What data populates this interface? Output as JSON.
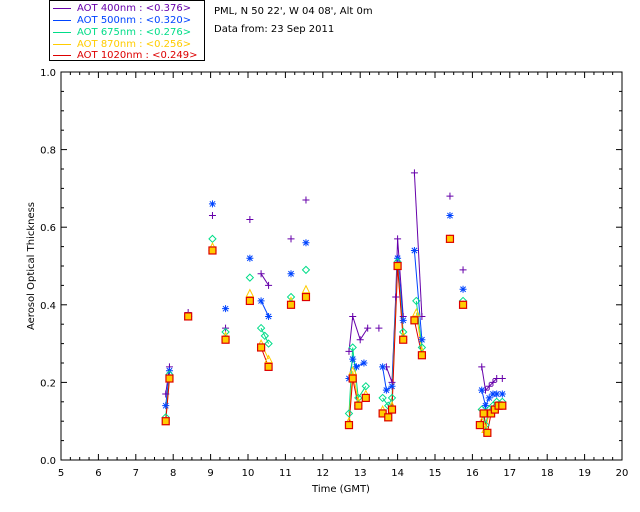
{
  "header": {
    "site": "PML, N 50 22', W 04 08', Alt 0m",
    "date_line": "Data from: 23 Sep 2011"
  },
  "legend": [
    {
      "label": "AOT  400nm : <0.376>",
      "color": "#6600aa"
    },
    {
      "label": "AOT  500nm : <0.320>",
      "color": "#0044ff"
    },
    {
      "label": "AOT  675nm : <0.276>",
      "color": "#00dd88"
    },
    {
      "label": "AOT  870nm : <0.256>",
      "color": "#ffcc00"
    },
    {
      "label": "AOT 1020nm : <0.249>",
      "color": "#dd0000"
    }
  ],
  "chart_data": {
    "type": "line",
    "title": "",
    "xlabel": "Time (GMT)",
    "ylabel": "Aerosol Optical Thickness",
    "xlim": [
      5,
      20
    ],
    "ylim": [
      0.0,
      1.0
    ],
    "xticks": [
      "5",
      "6",
      "7",
      "8",
      "9",
      "10",
      "11",
      "12",
      "13",
      "14",
      "15",
      "16",
      "17",
      "18",
      "19",
      "20"
    ],
    "yticks": [
      "0.0",
      "0.2",
      "0.4",
      "0.6",
      "0.8",
      "1.0"
    ],
    "grid": false,
    "legend_position": "top-left",
    "series": [
      {
        "name": "AOT  400nm : <0.376>",
        "color": "#6600aa",
        "marker": "plus",
        "segments": [
          [
            [
              7.8,
              0.17
            ],
            [
              7.9,
              0.24
            ]
          ],
          [
            [
              8.4,
              0.38
            ]
          ],
          [
            [
              9.05,
              0.63
            ]
          ],
          [
            [
              9.4,
              0.34
            ]
          ],
          [
            [
              10.05,
              0.62
            ]
          ],
          [
            [
              10.35,
              0.48
            ],
            [
              10.55,
              0.45
            ]
          ],
          [
            [
              11.15,
              0.57
            ]
          ],
          [
            [
              11.55,
              0.67
            ]
          ],
          [
            [
              12.7,
              0.28
            ],
            [
              12.8,
              0.37
            ],
            [
              13.0,
              0.31
            ],
            [
              13.2,
              0.34
            ]
          ],
          [
            [
              13.5,
              0.34
            ]
          ],
          [
            [
              13.7,
              0.24
            ],
            [
              13.85,
              0.2
            ],
            [
              13.95,
              0.42
            ],
            [
              14.0,
              0.57
            ],
            [
              14.15,
              0.37
            ]
          ],
          [
            [
              14.45,
              0.74
            ],
            [
              14.65,
              0.37
            ]
          ],
          [
            [
              15.4,
              0.68
            ]
          ],
          [
            [
              15.75,
              0.49
            ]
          ],
          [
            [
              16.25,
              0.24
            ],
            [
              16.35,
              0.18
            ],
            [
              16.45,
              0.19
            ],
            [
              16.55,
              0.2
            ],
            [
              16.65,
              0.21
            ],
            [
              16.8,
              0.21
            ]
          ]
        ]
      },
      {
        "name": "AOT  500nm : <0.320>",
        "color": "#0044ff",
        "marker": "star",
        "segments": [
          [
            [
              7.8,
              0.14
            ],
            [
              7.9,
              0.23
            ]
          ],
          [
            [
              8.4,
              0.37
            ]
          ],
          [
            [
              9.05,
              0.66
            ]
          ],
          [
            [
              9.4,
              0.39
            ]
          ],
          [
            [
              10.05,
              0.52
            ]
          ],
          [
            [
              10.35,
              0.41
            ],
            [
              10.55,
              0.37
            ]
          ],
          [
            [
              11.15,
              0.48
            ]
          ],
          [
            [
              11.55,
              0.56
            ]
          ],
          [
            [
              12.7,
              0.21
            ],
            [
              12.8,
              0.26
            ],
            [
              12.9,
              0.24
            ],
            [
              13.1,
              0.25
            ]
          ],
          [
            [
              13.6,
              0.24
            ],
            [
              13.7,
              0.18
            ],
            [
              13.85,
              0.19
            ],
            [
              14.0,
              0.52
            ],
            [
              14.15,
              0.36
            ]
          ],
          [
            [
              14.45,
              0.54
            ],
            [
              14.65,
              0.31
            ]
          ],
          [
            [
              15.4,
              0.63
            ]
          ],
          [
            [
              15.75,
              0.44
            ]
          ],
          [
            [
              16.25,
              0.18
            ],
            [
              16.35,
              0.14
            ],
            [
              16.45,
              0.16
            ],
            [
              16.55,
              0.17
            ],
            [
              16.65,
              0.17
            ],
            [
              16.8,
              0.17
            ]
          ]
        ]
      },
      {
        "name": "AOT  675nm : <0.276>",
        "color": "#00dd88",
        "marker": "diamond",
        "segments": [
          [
            [
              7.8,
              0.11
            ],
            [
              7.9,
              0.22
            ]
          ],
          [
            [
              8.4,
              0.37
            ]
          ],
          [
            [
              9.05,
              0.57
            ]
          ],
          [
            [
              9.4,
              0.33
            ]
          ],
          [
            [
              10.05,
              0.47
            ]
          ],
          [
            [
              10.35,
              0.34
            ],
            [
              10.45,
              0.32
            ],
            [
              10.55,
              0.3
            ]
          ],
          [
            [
              11.15,
              0.42
            ]
          ],
          [
            [
              11.55,
              0.49
            ]
          ],
          [
            [
              12.7,
              0.12
            ],
            [
              12.8,
              0.29
            ],
            [
              12.95,
              0.16
            ],
            [
              13.15,
              0.19
            ]
          ],
          [
            [
              13.6,
              0.16
            ],
            [
              13.75,
              0.14
            ],
            [
              13.85,
              0.16
            ],
            [
              14.0,
              0.51
            ],
            [
              14.15,
              0.33
            ]
          ],
          [
            [
              14.5,
              0.41
            ],
            [
              14.65,
              0.29
            ]
          ],
          [
            [
              15.4,
              0.57
            ]
          ],
          [
            [
              15.75,
              0.41
            ]
          ],
          [
            [
              16.25,
              0.13
            ],
            [
              16.35,
              0.09
            ],
            [
              16.45,
              0.13
            ],
            [
              16.55,
              0.14
            ],
            [
              16.65,
              0.15
            ],
            [
              16.8,
              0.15
            ]
          ]
        ]
      },
      {
        "name": "AOT  870nm : <0.256>",
        "color": "#ffcc00",
        "marker": "triangle",
        "segments": [
          [
            [
              7.8,
              0.1
            ],
            [
              7.9,
              0.21
            ]
          ],
          [
            [
              8.4,
              0.37
            ]
          ],
          [
            [
              9.05,
              0.55
            ]
          ],
          [
            [
              9.4,
              0.32
            ]
          ],
          [
            [
              10.05,
              0.43
            ]
          ],
          [
            [
              10.35,
              0.3
            ],
            [
              10.55,
              0.26
            ]
          ],
          [
            [
              11.15,
              0.41
            ]
          ],
          [
            [
              11.55,
              0.44
            ]
          ],
          [
            [
              12.7,
              0.1
            ],
            [
              12.8,
              0.23
            ],
            [
              12.95,
              0.15
            ],
            [
              13.15,
              0.17
            ]
          ],
          [
            [
              13.6,
              0.13
            ],
            [
              13.75,
              0.11
            ],
            [
              13.85,
              0.14
            ],
            [
              14.0,
              0.5
            ],
            [
              14.15,
              0.32
            ]
          ],
          [
            [
              14.5,
              0.38
            ],
            [
              14.65,
              0.28
            ]
          ],
          [
            [
              15.4,
              0.57
            ]
          ],
          [
            [
              15.75,
              0.4
            ]
          ],
          [
            [
              16.25,
              0.1
            ],
            [
              16.35,
              0.08
            ],
            [
              16.45,
              0.12
            ],
            [
              16.55,
              0.13
            ],
            [
              16.65,
              0.14
            ],
            [
              16.8,
              0.14
            ]
          ]
        ]
      },
      {
        "name": "AOT 1020nm : <0.249>",
        "color": "#dd0000",
        "marker": "square",
        "segments": [
          [
            [
              7.8,
              0.1
            ],
            [
              7.9,
              0.21
            ]
          ],
          [
            [
              8.4,
              0.37
            ]
          ],
          [
            [
              9.05,
              0.54
            ]
          ],
          [
            [
              9.4,
              0.31
            ]
          ],
          [
            [
              10.05,
              0.41
            ]
          ],
          [
            [
              10.35,
              0.29
            ],
            [
              10.55,
              0.24
            ]
          ],
          [
            [
              11.15,
              0.4
            ]
          ],
          [
            [
              11.55,
              0.42
            ]
          ],
          [
            [
              12.7,
              0.09
            ],
            [
              12.8,
              0.21
            ],
            [
              12.95,
              0.14
            ],
            [
              13.15,
              0.16
            ]
          ],
          [
            [
              13.6,
              0.12
            ],
            [
              13.75,
              0.11
            ],
            [
              13.85,
              0.13
            ],
            [
              14.0,
              0.5
            ],
            [
              14.15,
              0.31
            ]
          ],
          [
            [
              14.45,
              0.36
            ],
            [
              14.65,
              0.27
            ]
          ],
          [
            [
              15.4,
              0.57
            ]
          ],
          [
            [
              15.75,
              0.4
            ]
          ],
          [
            [
              16.2,
              0.09
            ],
            [
              16.3,
              0.12
            ],
            [
              16.4,
              0.07
            ],
            [
              16.5,
              0.12
            ],
            [
              16.6,
              0.13
            ],
            [
              16.7,
              0.14
            ],
            [
              16.8,
              0.14
            ]
          ]
        ]
      }
    ]
  }
}
